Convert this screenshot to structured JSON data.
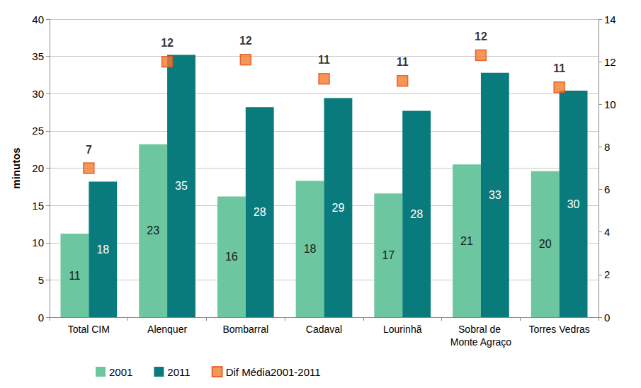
{
  "chart_data": {
    "type": "bar",
    "ylabel": "minutos",
    "categories": [
      "Total CIM",
      "Alenquer",
      "Bombarral",
      "Cadaval",
      "Lourinhã",
      "Sobral de Monte Agraço",
      "Torres Vedras"
    ],
    "series": [
      {
        "name": "2001",
        "type": "bar",
        "color": "#6cc6a0",
        "values": [
          11.2,
          23.2,
          16.2,
          18.3,
          16.6,
          20.5,
          19.6
        ],
        "value_labels": [
          "11",
          "23",
          "16",
          "18",
          "17",
          "21",
          "20"
        ]
      },
      {
        "name": "2011",
        "type": "bar",
        "color": "#0a7b7c",
        "values": [
          18.2,
          35.2,
          28.2,
          29.4,
          27.7,
          32.8,
          30.4
        ],
        "value_labels": [
          "18",
          "35",
          "28",
          "29",
          "28",
          "33",
          "30"
        ]
      },
      {
        "name": "Dif Média2001-2011",
        "type": "scatter",
        "axis": "y2",
        "color": "#f47a2a",
        "marker": "square",
        "values": [
          7.0,
          12.0,
          12.1,
          11.2,
          11.1,
          12.3,
          10.8
        ],
        "value_labels": [
          "7",
          "12",
          "12",
          "11",
          "11",
          "12",
          "11"
        ]
      }
    ],
    "ylim": [
      0,
      40
    ],
    "yticks": [
      0,
      5,
      10,
      15,
      20,
      25,
      30,
      35,
      40
    ],
    "y2lim": [
      0,
      14
    ],
    "y2ticks": [
      0,
      2,
      4,
      6,
      8,
      10,
      12,
      14
    ],
    "grid": true,
    "legend": "bottom",
    "data_labels": true
  }
}
